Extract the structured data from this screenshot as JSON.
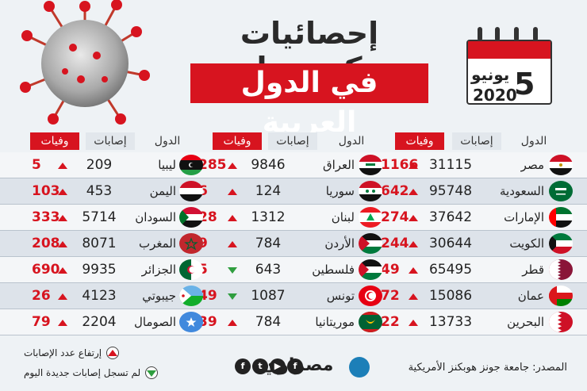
{
  "title": {
    "line1": "إحصائيات كـورونا",
    "line2": "في الدول العربية"
  },
  "calendar": {
    "day": "5",
    "month": "يونيو",
    "year": "2020"
  },
  "headers": {
    "country": "الدول",
    "cases": "إصابات",
    "deaths": "وفيات"
  },
  "columns": [
    {
      "rows": [
        {
          "country": "مصر",
          "cases": "31115",
          "deaths": "1166",
          "trend": "up",
          "flag": "egypt-flag-icon"
        },
        {
          "country": "السعودية",
          "cases": "95748",
          "deaths": "642",
          "trend": "up",
          "flag": "saudi-flag-icon"
        },
        {
          "country": "الإمارات",
          "cases": "37642",
          "deaths": "274",
          "trend": "up",
          "flag": "uae-flag-icon"
        },
        {
          "country": "الكويت",
          "cases": "30644",
          "deaths": "244",
          "trend": "up",
          "flag": "kuwait-flag-icon"
        },
        {
          "country": "قطر",
          "cases": "65495",
          "deaths": "49",
          "trend": "up",
          "flag": "qatar-flag-icon"
        },
        {
          "country": "عمان",
          "cases": "15086",
          "deaths": "72",
          "trend": "up",
          "flag": "oman-flag-icon"
        },
        {
          "country": "البحرين",
          "cases": "13733",
          "deaths": "22",
          "trend": "up",
          "flag": "bahrain-flag-icon"
        }
      ]
    },
    {
      "rows": [
        {
          "country": "العراق",
          "cases": "9846",
          "deaths": "285",
          "trend": "up",
          "flag": "iraq-flag-icon"
        },
        {
          "country": "سوريا",
          "cases": "124",
          "deaths": "6",
          "trend": "up",
          "flag": "syria-flag-icon"
        },
        {
          "country": "لبنان",
          "cases": "1312",
          "deaths": "28",
          "trend": "up",
          "flag": "lebanon-flag-icon"
        },
        {
          "country": "الأردن",
          "cases": "784",
          "deaths": "9",
          "trend": "up",
          "flag": "jordan-flag-icon"
        },
        {
          "country": "فلسطين",
          "cases": "643",
          "deaths": "5",
          "trend": "down",
          "flag": "palestine-flag-icon"
        },
        {
          "country": "تونس",
          "cases": "1087",
          "deaths": "49",
          "trend": "down",
          "flag": "tunisia-flag-icon"
        },
        {
          "country": "موريتانيا",
          "cases": "784",
          "deaths": "39",
          "trend": "up",
          "flag": "mauritania-flag-icon"
        }
      ]
    },
    {
      "rows": [
        {
          "country": "ليبيا",
          "cases": "209",
          "deaths": "5",
          "trend": "up",
          "flag": "libya-flag-icon"
        },
        {
          "country": "اليمن",
          "cases": "453",
          "deaths": "103",
          "trend": "up",
          "flag": "yemen-flag-icon"
        },
        {
          "country": "السودان",
          "cases": "5714",
          "deaths": "333",
          "trend": "up",
          "flag": "sudan-flag-icon"
        },
        {
          "country": "المغرب",
          "cases": "8071",
          "deaths": "208",
          "trend": "up",
          "flag": "morocco-flag-icon"
        },
        {
          "country": "الجزائر",
          "cases": "9935",
          "deaths": "690",
          "trend": "up",
          "flag": "algeria-flag-icon"
        },
        {
          "country": "جيبوتي",
          "cases": "4123",
          "deaths": "26",
          "trend": "up",
          "flag": "djibouti-flag-icon"
        },
        {
          "country": "الصومال",
          "cases": "2204",
          "deaths": "79",
          "trend": "up",
          "flag": "somalia-flag-icon"
        }
      ]
    }
  ],
  "legend": {
    "up": "إرتفاع عدد الإصابات",
    "down": "لم تسجل إصابات جديدة اليوم"
  },
  "source": "المصدر: جامعة جونز هوبكنز الأمريكية",
  "brand": "مصراوي",
  "social": [
    "f",
    "t",
    "▶",
    "f"
  ],
  "colors": {
    "accent": "#d7141f",
    "up": "#d7141f",
    "down": "#2f9e3f"
  }
}
